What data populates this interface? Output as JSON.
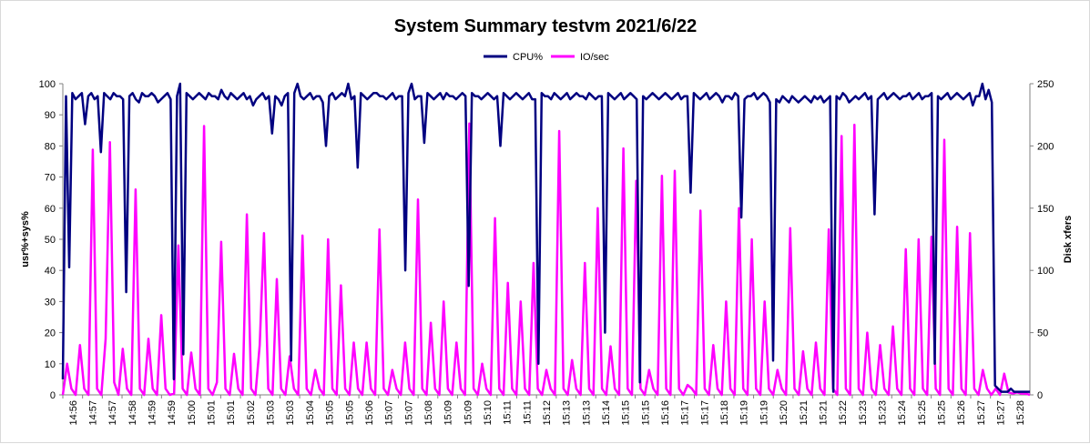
{
  "chart_data": {
    "type": "line",
    "title": "System Summary testvm  2021/6/22",
    "legend": {
      "placement": "top-center"
    },
    "x_ticks": [
      "14:56",
      "14:57",
      "14:57",
      "14:58",
      "14:59",
      "14:59",
      "15:00",
      "15:01",
      "15:01",
      "15:02",
      "15:03",
      "15:03",
      "15:04",
      "15:05",
      "15:05",
      "15:06",
      "15:07",
      "15:07",
      "15:08",
      "15:09",
      "15:09",
      "15:10",
      "15:11",
      "15:11",
      "15:12",
      "15:13",
      "15:13",
      "15:14",
      "15:15",
      "15:15",
      "15:16",
      "15:17",
      "15:17",
      "15:18",
      "15:19",
      "15:19",
      "15:20",
      "15:21",
      "15:21",
      "15:22",
      "15:23",
      "15:23",
      "15:24",
      "15:25",
      "15:25",
      "15:26",
      "15:27",
      "15:27",
      "15:28"
    ],
    "y_left": {
      "label": "usr%+sys%",
      "range": [
        0,
        100
      ],
      "ticks": [
        0,
        10,
        20,
        30,
        40,
        50,
        60,
        70,
        80,
        90,
        100
      ]
    },
    "y_right": {
      "label": "Disk xfers",
      "range": [
        0,
        250
      ],
      "ticks": [
        0,
        50,
        100,
        150,
        200,
        250
      ]
    },
    "grid": false,
    "series": [
      {
        "name": "CPU%",
        "axis": "left",
        "color": "#000080",
        "values": [
          5,
          96,
          41,
          97,
          95,
          96,
          97,
          87,
          96,
          97,
          95,
          96,
          78,
          97,
          96,
          95,
          97,
          96,
          96,
          95,
          33,
          96,
          97,
          95,
          94,
          97,
          96,
          96,
          97,
          96,
          94,
          95,
          96,
          97,
          95,
          5,
          96,
          100,
          13,
          97,
          96,
          95,
          96,
          97,
          96,
          95,
          97,
          96,
          96,
          95,
          98,
          96,
          95,
          97,
          96,
          95,
          96,
          97,
          95,
          96,
          93,
          95,
          96,
          97,
          95,
          96,
          84,
          96,
          95,
          93,
          96,
          97,
          11,
          97,
          100,
          96,
          95,
          96,
          97,
          95,
          96,
          96,
          94,
          80,
          96,
          97,
          95,
          96,
          97,
          96,
          100,
          95,
          96,
          73,
          97,
          96,
          95,
          96,
          97,
          97,
          96,
          96,
          95,
          96,
          97,
          95,
          96,
          96,
          40,
          97,
          100,
          95,
          96,
          96,
          81,
          97,
          96,
          95,
          96,
          97,
          95,
          97,
          96,
          96,
          95,
          96,
          97,
          96,
          35,
          97,
          96,
          96,
          95,
          96,
          97,
          96,
          95,
          96,
          80,
          97,
          96,
          95,
          96,
          97,
          96,
          95,
          96,
          97,
          95,
          95,
          10,
          97,
          96,
          96,
          95,
          97,
          96,
          95,
          96,
          97,
          95,
          96,
          97,
          96,
          96,
          95,
          97,
          96,
          95,
          96,
          96,
          20,
          97,
          96,
          95,
          96,
          97,
          95,
          96,
          97,
          96,
          95,
          4,
          96,
          95,
          96,
          97,
          96,
          95,
          96,
          97,
          96,
          95,
          96,
          97,
          95,
          96,
          96,
          65,
          97,
          96,
          95,
          96,
          97,
          95,
          96,
          97,
          96,
          94,
          96,
          96,
          95,
          97,
          96,
          57,
          95,
          96,
          96,
          97,
          95,
          96,
          97,
          96,
          94,
          11,
          95,
          94,
          96,
          95,
          94,
          96,
          95,
          94,
          95,
          96,
          95,
          94,
          96,
          95,
          96,
          94,
          95,
          96,
          1,
          96,
          95,
          97,
          96,
          94,
          95,
          96,
          95,
          96,
          97,
          95,
          96,
          58,
          95,
          96,
          97,
          95,
          96,
          97,
          96,
          95,
          96,
          96,
          97,
          95,
          96,
          97,
          95,
          96,
          96,
          97,
          10,
          96,
          95,
          96,
          97,
          95,
          96,
          97,
          96,
          95,
          96,
          97,
          93,
          96,
          96,
          100,
          95,
          98,
          94,
          3,
          2,
          1,
          1,
          1,
          2,
          1,
          1,
          1,
          1,
          1,
          1
        ]
      },
      {
        "name": "IO/sec",
        "axis": "right",
        "color": "#ff00ff",
        "values": [
          0,
          25,
          5,
          0,
          40,
          5,
          0,
          197,
          5,
          0,
          45,
          203,
          10,
          0,
          37,
          5,
          0,
          165,
          5,
          0,
          45,
          5,
          0,
          64,
          5,
          0,
          1,
          120,
          5,
          0,
          34,
          5,
          0,
          216,
          5,
          0,
          10,
          123,
          5,
          0,
          33,
          5,
          0,
          145,
          5,
          0,
          40,
          130,
          5,
          0,
          93,
          5,
          0,
          31,
          5,
          0,
          128,
          5,
          0,
          20,
          5,
          0,
          125,
          5,
          0,
          88,
          5,
          0,
          42,
          5,
          0,
          42,
          5,
          0,
          133,
          5,
          0,
          20,
          5,
          0,
          42,
          5,
          0,
          157,
          5,
          0,
          58,
          5,
          0,
          75,
          5,
          0,
          42,
          5,
          0,
          218,
          5,
          0,
          25,
          5,
          0,
          142,
          5,
          0,
          90,
          5,
          0,
          75,
          5,
          0,
          106,
          5,
          0,
          20,
          5,
          0,
          212,
          5,
          0,
          28,
          5,
          0,
          106,
          5,
          0,
          150,
          5,
          0,
          39,
          5,
          0,
          198,
          5,
          0,
          172,
          5,
          0,
          20,
          5,
          0,
          176,
          5,
          0,
          180,
          5,
          0,
          8,
          5,
          0,
          148,
          5,
          0,
          40,
          5,
          0,
          75,
          5,
          0,
          150,
          5,
          0,
          125,
          5,
          0,
          75,
          5,
          0,
          20,
          5,
          0,
          134,
          5,
          0,
          35,
          5,
          0,
          42,
          5,
          0,
          133,
          5,
          0,
          208,
          5,
          0,
          217,
          5,
          0,
          50,
          5,
          0,
          40,
          5,
          0,
          55,
          5,
          0,
          117,
          5,
          0,
          125,
          5,
          0,
          127,
          5,
          0,
          205,
          5,
          0,
          135,
          5,
          0,
          130,
          5,
          0,
          20,
          5,
          0,
          5,
          0,
          17,
          2,
          1,
          2,
          1,
          1,
          0
        ]
      }
    ]
  }
}
